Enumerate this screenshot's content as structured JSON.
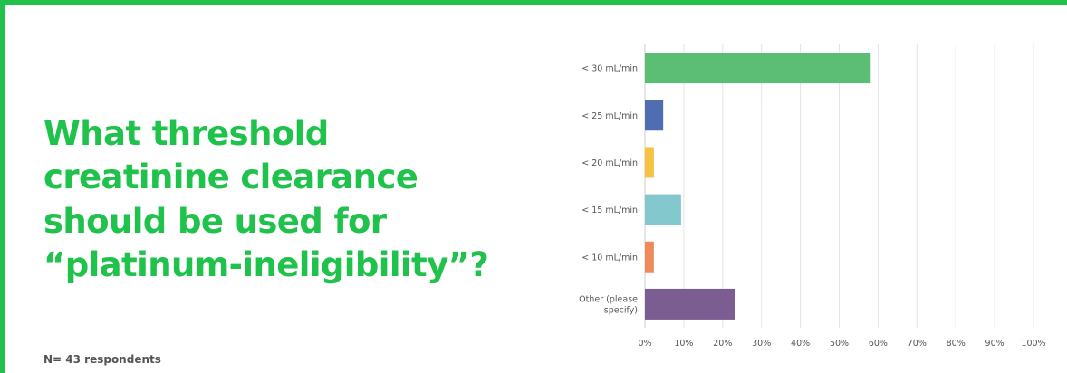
{
  "slide": {
    "question": "What threshold creatinine clearance should be used for “platinum-ineligibility”?",
    "footnote": "N= 43 respondents"
  },
  "chart_data": {
    "type": "bar",
    "orientation": "horizontal",
    "title": "",
    "xlabel": "",
    "ylabel": "",
    "xlim": [
      0,
      100
    ],
    "ticks": [
      "0%",
      "10%",
      "20%",
      "30%",
      "40%",
      "50%",
      "60%",
      "70%",
      "80%",
      "90%",
      "100%"
    ],
    "grid": true,
    "categories": [
      [
        "< 30 mL/min"
      ],
      [
        "< 25 mL/min"
      ],
      [
        "< 20 mL/min"
      ],
      [
        "< 15 mL/min"
      ],
      [
        "< 10 mL/min"
      ],
      [
        "Other (please",
        "specify)"
      ]
    ],
    "values": [
      58.1,
      4.7,
      2.3,
      9.3,
      2.3,
      23.3
    ],
    "colors": [
      "#5cbd75",
      "#4f6db0",
      "#f5c242",
      "#82c8cc",
      "#ef8a5a",
      "#7b5d92"
    ]
  }
}
